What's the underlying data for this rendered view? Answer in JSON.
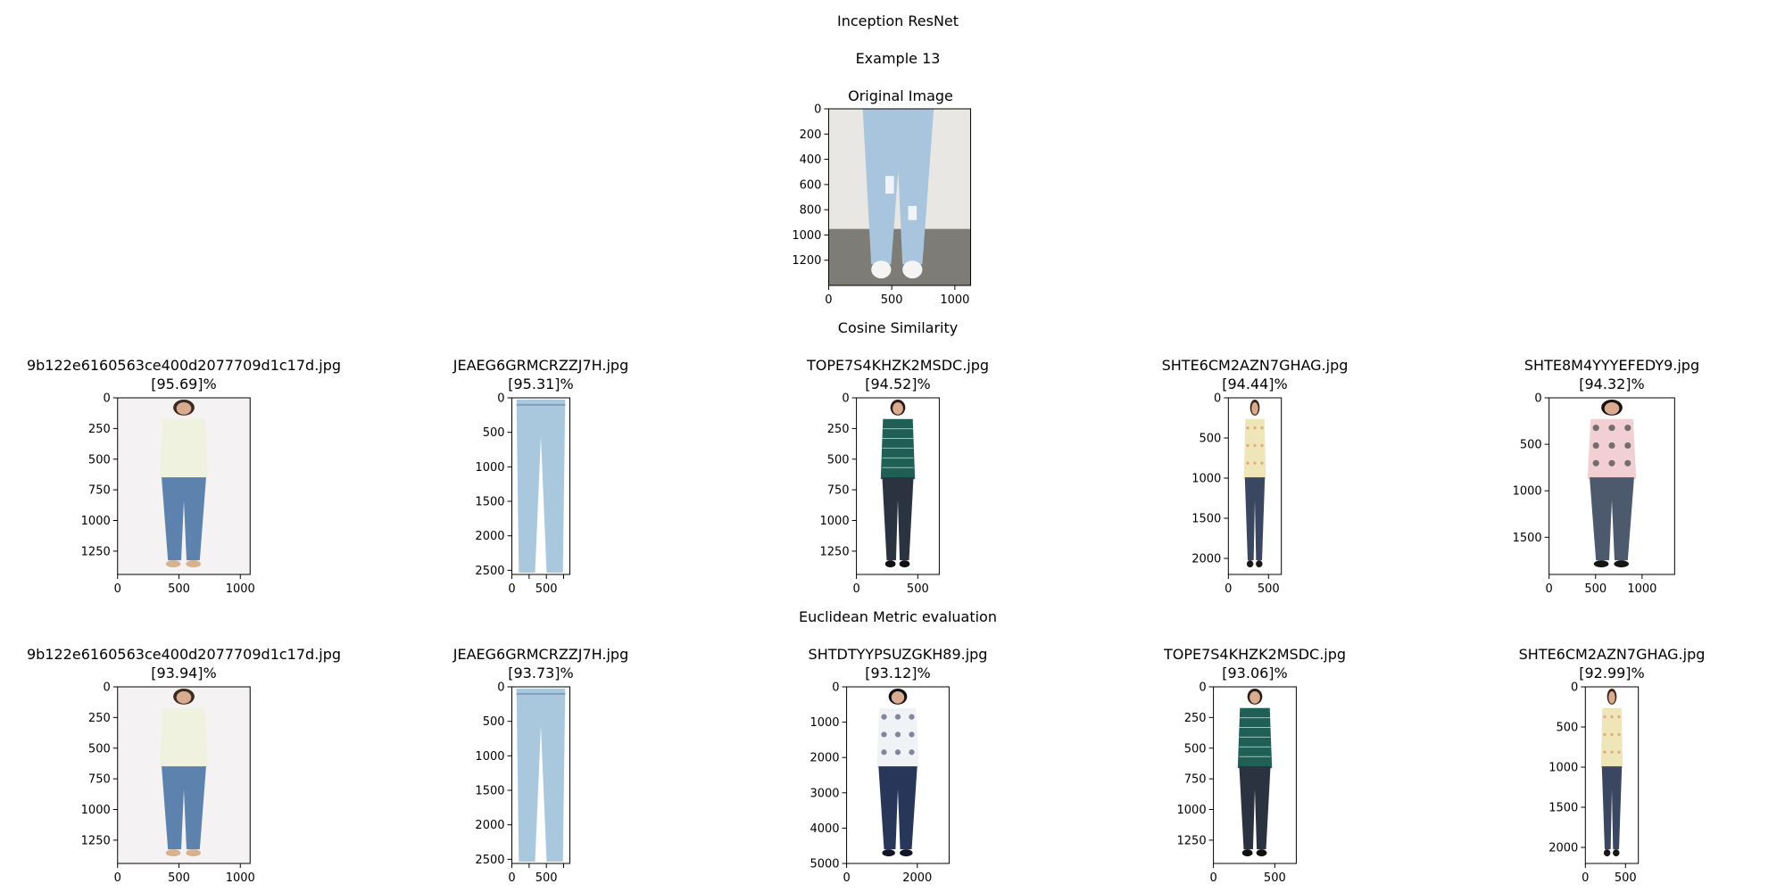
{
  "figure": {
    "title": "Inception ResNet",
    "subtitle": "Example 13",
    "original_title": "Original Image",
    "cosine_heading": "Cosine Similarity",
    "euclidean_heading": "Euclidean Metric evaluation"
  },
  "chart_data": [
    {
      "type": "image",
      "label": "Original Image",
      "xlim": [
        0,
        1125
      ],
      "ylim": [
        0,
        1400
      ],
      "xticks": [
        0,
        500,
        1000
      ],
      "yticks": [
        0,
        200,
        400,
        600,
        800,
        1000,
        1200
      ],
      "content": "cropped-jeans-studio"
    },
    {
      "type": "image",
      "group": "Cosine Similarity",
      "name": "9b122e6160563ce400d2077709d1c17d.jpg",
      "score": "[95.69]%",
      "xlim": [
        0,
        1080
      ],
      "ylim": [
        0,
        1440
      ],
      "xticks": [
        0,
        500,
        1000
      ],
      "yticks": [
        0,
        250,
        500,
        750,
        1000,
        1250
      ],
      "content": "cream-cardigan-jeans"
    },
    {
      "type": "image",
      "group": "Cosine Similarity",
      "name": "JEAEG6GRMCRZZJ7H.jpg",
      "score": "[95.31]%",
      "xlim": [
        0,
        840
      ],
      "ylim": [
        0,
        2560
      ],
      "xticks": [
        0,
        250,
        500,
        750
      ],
      "xtick_labels": [
        "0",
        "",
        "500",
        ""
      ],
      "yticks": [
        0,
        500,
        1000,
        1500,
        2000,
        2500
      ],
      "content": "light-jeans"
    },
    {
      "type": "image",
      "group": "Cosine Similarity",
      "name": "TOPE7S4KHZK2MSDC.jpg",
      "score": "[94.52]%",
      "xlim": [
        0,
        675
      ],
      "ylim": [
        0,
        1440
      ],
      "xticks": [
        0,
        500
      ],
      "yticks": [
        0,
        250,
        500,
        750,
        1000,
        1250
      ],
      "content": "green-stripe-top"
    },
    {
      "type": "image",
      "group": "Cosine Similarity",
      "name": "SHTE6CM2AZN7GHAG.jpg",
      "score": "[94.44]%",
      "xlim": [
        0,
        660
      ],
      "ylim": [
        0,
        2200
      ],
      "xticks": [
        0,
        500
      ],
      "yticks": [
        0,
        500,
        1000,
        1500,
        2000
      ],
      "content": "floral-shirt"
    },
    {
      "type": "image",
      "group": "Cosine Similarity",
      "name": "SHTE8M4YYYEFEDY9.jpg",
      "score": "[94.32]%",
      "xlim": [
        0,
        1350
      ],
      "ylim": [
        0,
        1900
      ],
      "xticks": [
        0,
        500,
        1000
      ],
      "yticks": [
        0,
        500,
        1000,
        1500
      ],
      "content": "pink-floral-top"
    },
    {
      "type": "image",
      "group": "Euclidean Metric evaluation",
      "name": "9b122e6160563ce400d2077709d1c17d.jpg",
      "score": "[93.94]%",
      "xlim": [
        0,
        1080
      ],
      "ylim": [
        0,
        1440
      ],
      "xticks": [
        0,
        500,
        1000
      ],
      "yticks": [
        0,
        250,
        500,
        750,
        1000,
        1250
      ],
      "content": "cream-cardigan-jeans"
    },
    {
      "type": "image",
      "group": "Euclidean Metric evaluation",
      "name": "JEAEG6GRMCRZZJ7H.jpg",
      "score": "[93.73]%",
      "xlim": [
        0,
        840
      ],
      "ylim": [
        0,
        2560
      ],
      "xticks": [
        0,
        250,
        500,
        750
      ],
      "xtick_labels": [
        "0",
        "",
        "500",
        ""
      ],
      "yticks": [
        0,
        500,
        1000,
        1500,
        2000,
        2500
      ],
      "content": "light-jeans"
    },
    {
      "type": "image",
      "group": "Euclidean Metric evaluation",
      "name": "SHTDTYYPSUZGKH89.jpg",
      "score": "[93.12]%",
      "xlim": [
        0,
        2900
      ],
      "ylim": [
        0,
        5000
      ],
      "xticks": [
        0,
        2000
      ],
      "yticks": [
        0,
        1000,
        2000,
        3000,
        4000,
        5000
      ],
      "content": "white-print-shirt-back"
    },
    {
      "type": "image",
      "group": "Euclidean Metric evaluation",
      "name": "TOPE7S4KHZK2MSDC.jpg",
      "score": "[93.06]%",
      "xlim": [
        0,
        675
      ],
      "ylim": [
        0,
        1440
      ],
      "xticks": [
        0,
        500
      ],
      "yticks": [
        0,
        250,
        500,
        750,
        1000,
        1250
      ],
      "content": "green-stripe-top"
    },
    {
      "type": "image",
      "group": "Euclidean Metric evaluation",
      "name": "SHTE6CM2AZN7GHAG.jpg",
      "score": "[92.99]%",
      "xlim": [
        0,
        660
      ],
      "ylim": [
        0,
        2200
      ],
      "xticks": [
        0,
        500
      ],
      "yticks": [
        0,
        500,
        1000,
        1500,
        2000
      ],
      "content": "floral-shirt"
    }
  ]
}
